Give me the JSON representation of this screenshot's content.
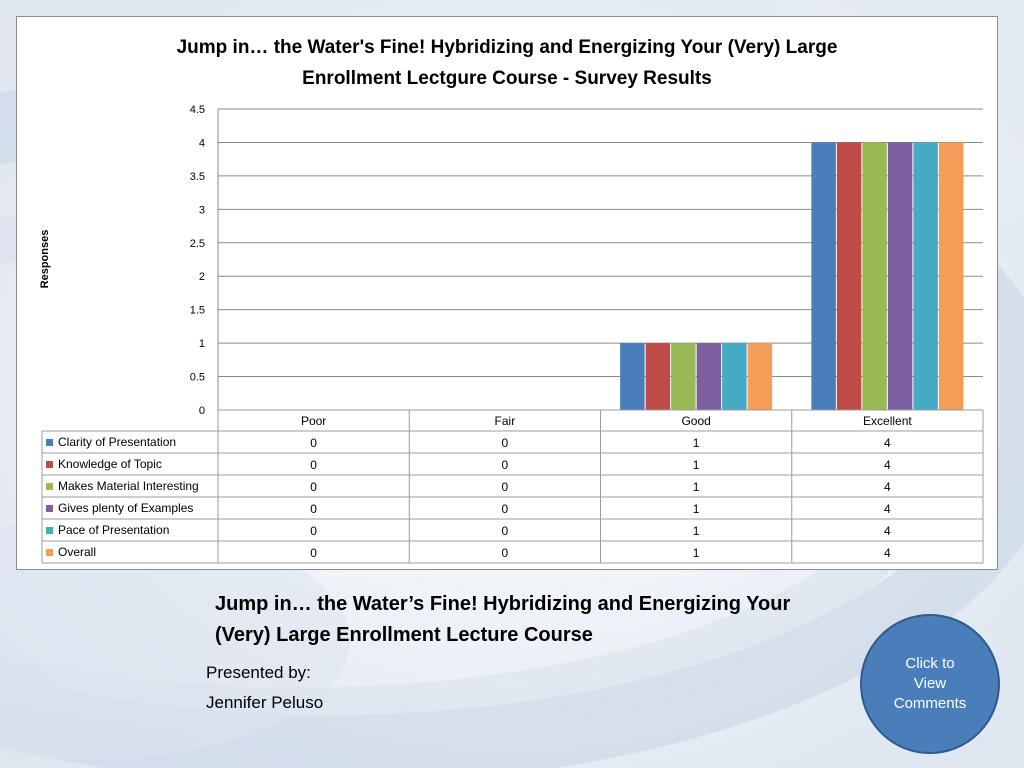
{
  "chart_data": {
    "type": "bar",
    "title_line1": "Jump in… the Water's Fine! Hybridizing and Energizing Your (Very) Large",
    "title_line2": "Enrollment Lectgure Course - Survey Results",
    "ylabel": "Responses",
    "xlabel": "",
    "ylim": [
      0,
      4.5
    ],
    "yticks": [
      "0",
      "0.5",
      "1",
      "1.5",
      "2",
      "2.5",
      "3",
      "3.5",
      "4",
      "4.5"
    ],
    "categories": [
      "Poor",
      "Fair",
      "Good",
      "Excellent"
    ],
    "series": [
      {
        "name": "Clarity of Presentation",
        "values": [
          0,
          0,
          1,
          4
        ],
        "color": "#4a7ebb"
      },
      {
        "name": "Knowledge of Topic",
        "values": [
          0,
          0,
          1,
          4
        ],
        "color": "#be4b48"
      },
      {
        "name": "Makes Material Interesting",
        "values": [
          0,
          0,
          1,
          4
        ],
        "color": "#98b954"
      },
      {
        "name": "Gives plenty of Examples",
        "values": [
          0,
          0,
          1,
          4
        ],
        "color": "#7d60a0"
      },
      {
        "name": "Pace of Presentation",
        "values": [
          0,
          0,
          1,
          4
        ],
        "color": "#46aac5"
      },
      {
        "name": "Overall",
        "values": [
          0,
          0,
          1,
          4
        ],
        "color": "#f59d56"
      }
    ],
    "grid": true,
    "legend": "data table below chart"
  },
  "slide": {
    "title": "Jump in… the Water’s Fine! Hybridizing and Energizing Your (Very) Large Enrollment Lecture Course",
    "presented_by": "Presented by:",
    "presenter": "Jennifer Peluso"
  },
  "button": {
    "label": "Click to View Comments",
    "color": "#4a7ebb"
  }
}
